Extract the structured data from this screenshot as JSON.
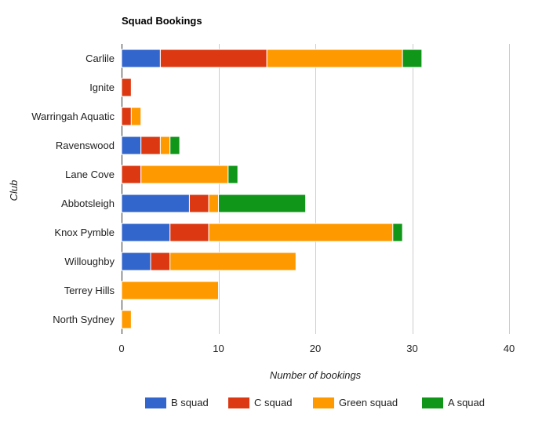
{
  "chart_data": {
    "type": "bar",
    "orientation": "horizontal",
    "stacked": true,
    "title": "Squad Bookings",
    "xlabel": "Number of bookings",
    "ylabel": "Club",
    "xlim": [
      0,
      40
    ],
    "xticks": [
      0,
      10,
      20,
      30,
      40
    ],
    "grid": true,
    "legend_position": "bottom",
    "categories": [
      "Carlile",
      "Ignite",
      "Warringah Aquatic",
      "Ravenswood",
      "Lane Cove",
      "Abbotsleigh",
      "Knox Pymble",
      "Willoughby",
      "Terrey Hills",
      "North Sydney"
    ],
    "series": [
      {
        "name": "B squad",
        "color": "#3366cc",
        "values": [
          4,
          0,
          0,
          2,
          0,
          7,
          5,
          3,
          0,
          0
        ]
      },
      {
        "name": "C squad",
        "color": "#dc3912",
        "values": [
          11,
          1,
          1,
          2,
          2,
          2,
          4,
          2,
          0,
          0
        ]
      },
      {
        "name": "Green squad",
        "color": "#ff9900",
        "values": [
          14,
          0,
          1,
          1,
          9,
          1,
          19,
          13,
          10,
          1
        ]
      },
      {
        "name": "A squad",
        "color": "#109618",
        "values": [
          2,
          0,
          0,
          1,
          1,
          9,
          1,
          0,
          0,
          0
        ]
      }
    ]
  }
}
